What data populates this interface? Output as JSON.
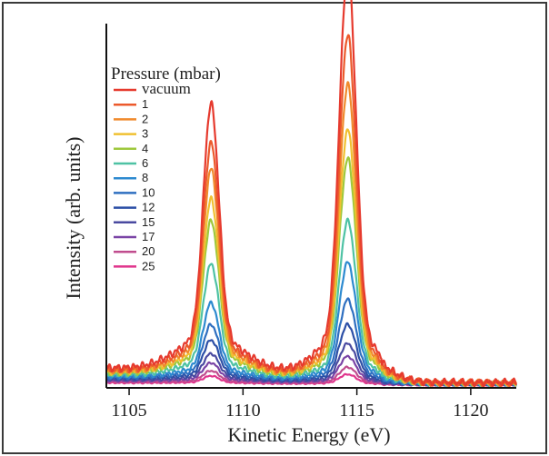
{
  "chart_data": {
    "type": "line",
    "title": "",
    "xlabel": "Kinetic Energy (eV)",
    "ylabel": "Intensity (arb. units)",
    "xlim": [
      1104,
      1122
    ],
    "ylim": [
      0,
      100
    ],
    "x_ticks": [
      1105,
      1110,
      1115,
      1120
    ],
    "grid": false,
    "legend": {
      "title": "Pressure (mbar)",
      "placement": "top-left"
    },
    "peaks": [
      {
        "center_eV": 1108.6,
        "width_eV": 0.34
      },
      {
        "center_eV": 1114.6,
        "width_eV": 0.36
      }
    ],
    "series": [
      {
        "name": "vacuum",
        "color": "#e63a2e",
        "peak1": 64,
        "peak2": 100,
        "baseline_low": 5,
        "baseline_high": 1.0
      },
      {
        "name": "1",
        "color": "#ec5a2c",
        "peak1": 55,
        "peak2": 84,
        "baseline_low": 4.5,
        "baseline_high": 0.9
      },
      {
        "name": "2",
        "color": "#f08a2c",
        "peak1": 49,
        "peak2": 72,
        "baseline_low": 4.2,
        "baseline_high": 0.9
      },
      {
        "name": "3",
        "color": "#f0c030",
        "peak1": 42,
        "peak2": 61,
        "baseline_low": 3.9,
        "baseline_high": 0.8
      },
      {
        "name": "4",
        "color": "#9ec83c",
        "peak1": 37,
        "peak2": 54,
        "baseline_low": 3.6,
        "baseline_high": 0.8
      },
      {
        "name": "6",
        "color": "#4ec2a4",
        "peak1": 27,
        "peak2": 39,
        "baseline_low": 3.1,
        "baseline_high": 0.7
      },
      {
        "name": "8",
        "color": "#2d8ad0",
        "peak1": 18,
        "peak2": 29,
        "baseline_low": 2.7,
        "baseline_high": 0.6
      },
      {
        "name": "10",
        "color": "#2e6fc0",
        "peak1": 13,
        "peak2": 20,
        "baseline_low": 2.4,
        "baseline_high": 0.6
      },
      {
        "name": "12",
        "color": "#2c4fa6",
        "peak1": 9.5,
        "peak2": 14,
        "baseline_low": 2.1,
        "baseline_high": 0.5
      },
      {
        "name": "15",
        "color": "#4a4aa0",
        "peak1": 6.5,
        "peak2": 9.5,
        "baseline_low": 1.8,
        "baseline_high": 0.5
      },
      {
        "name": "17",
        "color": "#7a44a6",
        "peak1": 4.5,
        "peak2": 6.5,
        "baseline_low": 1.5,
        "baseline_high": 0.4
      },
      {
        "name": "20",
        "color": "#c04c8e",
        "peak1": 2.8,
        "peak2": 4.0,
        "baseline_low": 1.2,
        "baseline_high": 0.4
      },
      {
        "name": "25",
        "color": "#e0358c",
        "peak1": 1.8,
        "peak2": 2.4,
        "baseline_low": 0.9,
        "baseline_high": 0.3
      }
    ]
  }
}
